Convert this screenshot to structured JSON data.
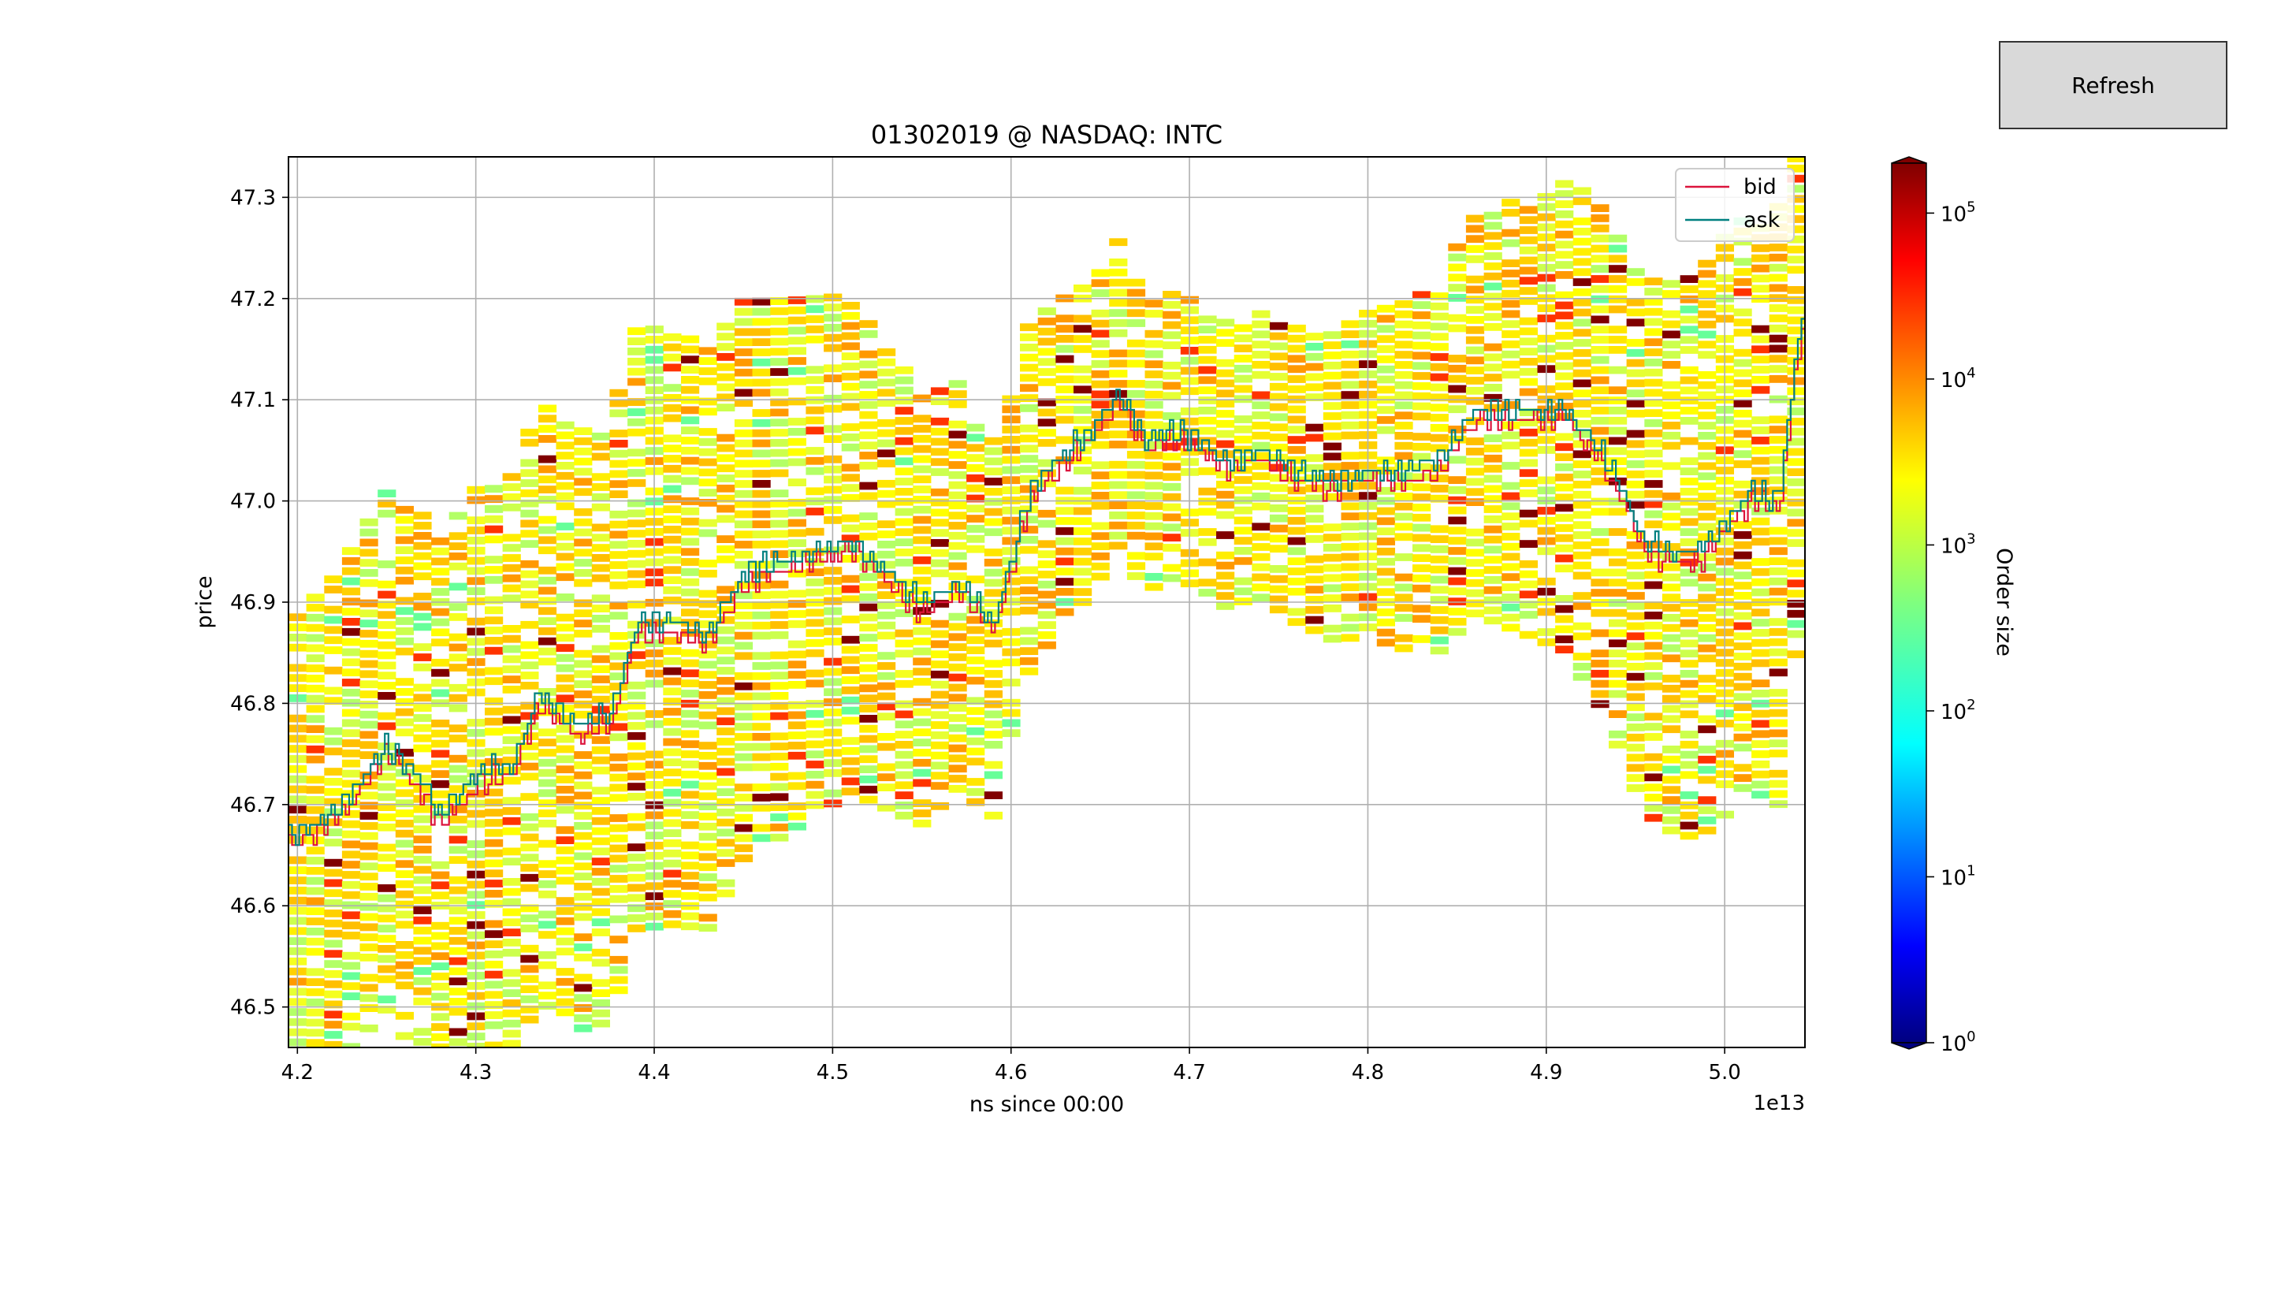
{
  "controls": {
    "refresh_label": "Refresh"
  },
  "chart_data": {
    "type": "heatmap",
    "title": "01302019 @ NASDAQ: INTC",
    "xlabel": "ns since 00:00",
    "ylabel": "price",
    "x_offset_label": "1e13",
    "x_tick_labels": [
      "4.2",
      "4.3",
      "4.4",
      "4.5",
      "4.6",
      "4.7",
      "4.8",
      "4.9",
      "5.0"
    ],
    "y_tick_labels": [
      "46.5",
      "46.6",
      "46.7",
      "46.8",
      "46.9",
      "47.0",
      "47.1",
      "47.2",
      "47.3"
    ],
    "xlim": [
      4.195,
      5.045
    ],
    "ylim": [
      46.46,
      47.34
    ],
    "grid": true,
    "legend": {
      "placement": "top-right",
      "entries": [
        {
          "name": "bid",
          "color": "#dc143c"
        },
        {
          "name": "ask",
          "color": "#008080"
        }
      ]
    },
    "colorbar": {
      "label": "Order size",
      "scale": "log",
      "colormap": "jet",
      "tick_labels": [
        "10",
        "10",
        "10",
        "10",
        "10",
        "10"
      ],
      "tick_exponents": [
        "0",
        "1",
        "2",
        "3",
        "4",
        "5"
      ],
      "range": [
        1,
        200000
      ]
    },
    "series": [
      {
        "name": "bid",
        "x": [
          4.195,
          4.21,
          4.23,
          4.25,
          4.27,
          4.28,
          4.3,
          4.32,
          4.335,
          4.355,
          4.375,
          4.39,
          4.41,
          4.43,
          4.45,
          4.47,
          4.49,
          4.51,
          4.53,
          4.55,
          4.57,
          4.59,
          4.61,
          4.625,
          4.645,
          4.66,
          4.675,
          4.69,
          4.705,
          4.72,
          4.74,
          4.76,
          4.78,
          4.8,
          4.82,
          4.84,
          4.86,
          4.88,
          4.895,
          4.91,
          4.93,
          4.945,
          4.955,
          4.97,
          4.985,
          5.0,
          5.015,
          5.03,
          5.04,
          5.045
        ],
        "y": [
          46.66,
          46.67,
          46.7,
          46.75,
          46.71,
          46.68,
          46.72,
          46.73,
          46.8,
          46.77,
          46.78,
          46.87,
          46.87,
          46.86,
          46.92,
          46.93,
          46.94,
          46.95,
          46.92,
          46.89,
          46.91,
          46.87,
          47.0,
          47.03,
          47.06,
          47.1,
          47.05,
          47.06,
          47.05,
          47.03,
          47.04,
          47.02,
          47.01,
          47.02,
          47.02,
          47.03,
          47.08,
          47.08,
          47.08,
          47.08,
          47.04,
          46.99,
          46.95,
          46.94,
          46.94,
          46.97,
          47.0,
          46.99,
          47.14,
          47.18
        ]
      },
      {
        "name": "ask",
        "x": [
          4.195,
          4.21,
          4.23,
          4.25,
          4.27,
          4.28,
          4.3,
          4.32,
          4.335,
          4.355,
          4.375,
          4.39,
          4.41,
          4.43,
          4.45,
          4.47,
          4.49,
          4.51,
          4.53,
          4.55,
          4.57,
          4.59,
          4.61,
          4.625,
          4.645,
          4.66,
          4.675,
          4.69,
          4.705,
          4.72,
          4.74,
          4.76,
          4.78,
          4.8,
          4.82,
          4.84,
          4.86,
          4.88,
          4.895,
          4.91,
          4.93,
          4.945,
          4.955,
          4.97,
          4.985,
          5.0,
          5.015,
          5.03,
          5.04,
          5.045
        ],
        "y": [
          46.67,
          46.68,
          46.71,
          46.76,
          46.72,
          46.69,
          46.73,
          46.74,
          46.81,
          46.78,
          46.79,
          46.88,
          46.88,
          46.87,
          46.93,
          46.94,
          46.95,
          46.96,
          46.93,
          46.9,
          46.92,
          46.88,
          47.01,
          47.04,
          47.07,
          47.11,
          47.06,
          47.07,
          47.06,
          47.04,
          47.05,
          47.03,
          47.02,
          47.03,
          47.03,
          47.04,
          47.09,
          47.09,
          47.09,
          47.09,
          47.05,
          47.0,
          46.96,
          46.95,
          46.95,
          46.98,
          47.01,
          47.0,
          47.15,
          47.2
        ]
      }
    ]
  }
}
